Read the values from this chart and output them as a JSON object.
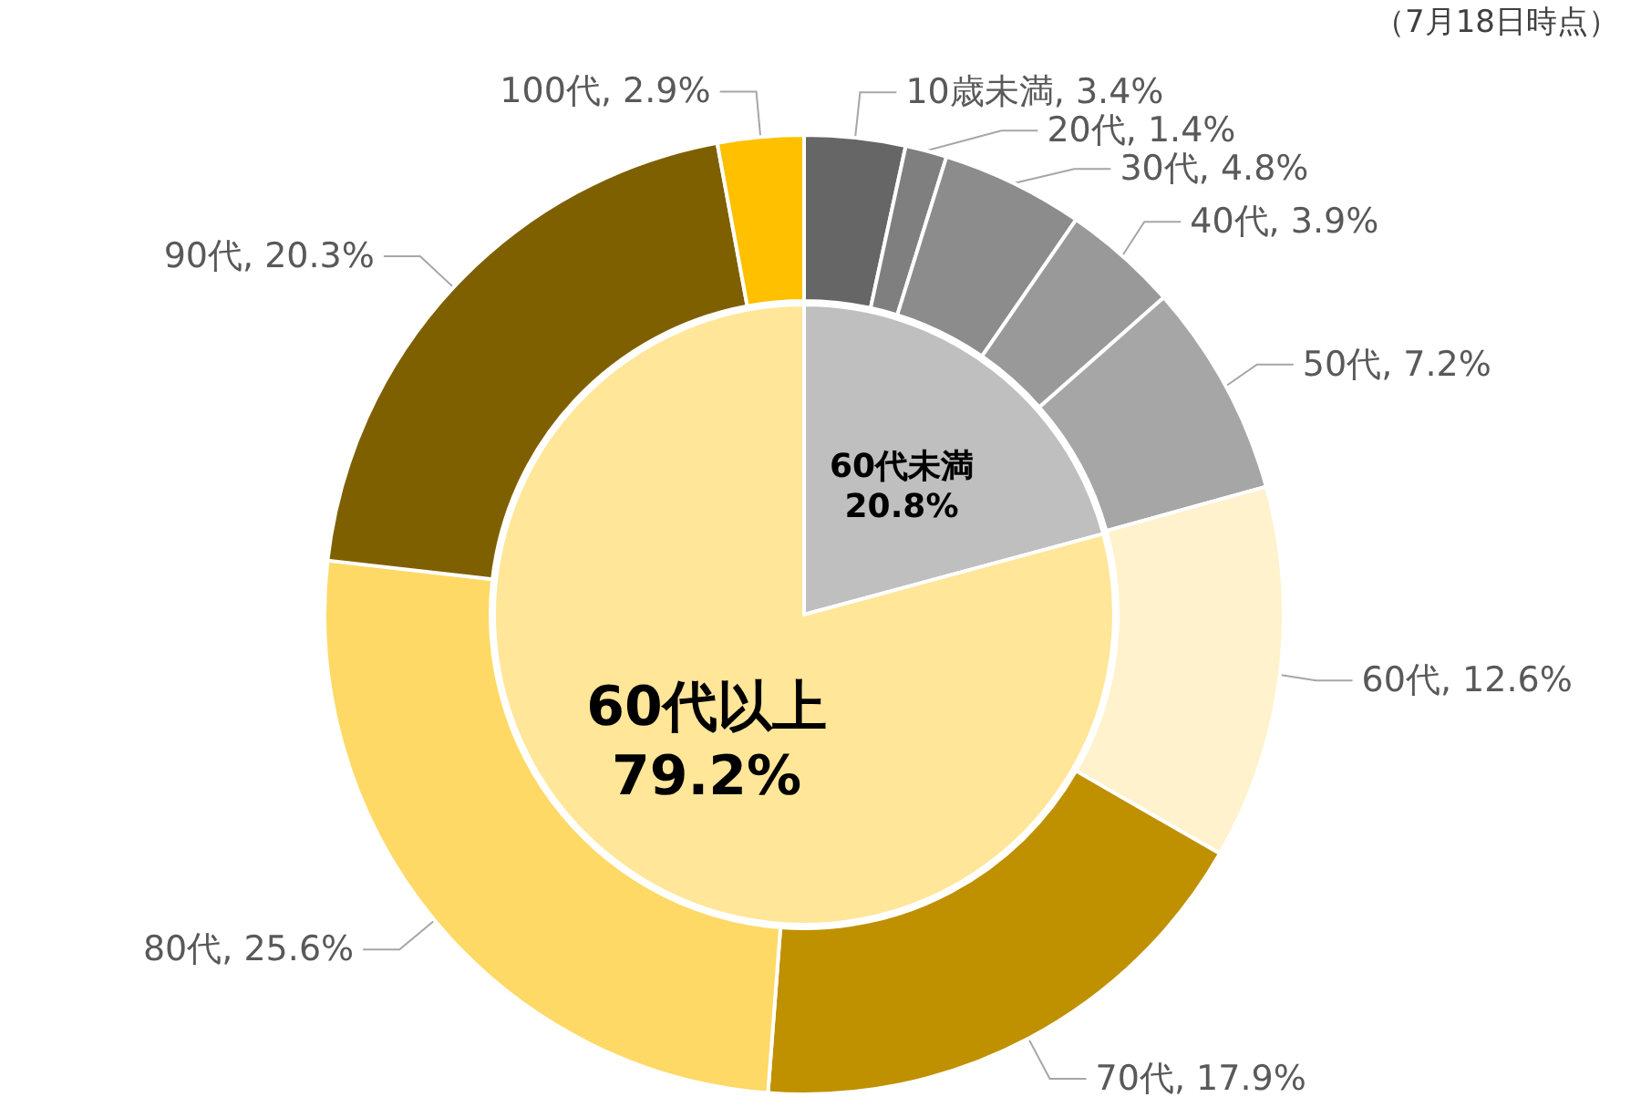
{
  "chart_data": [
    {
      "type": "donut",
      "categories": [
        "10歳未満",
        "20代",
        "30代",
        "40代",
        "50代",
        "60代",
        "70代",
        "80代",
        "90代",
        "100代"
      ],
      "values": [
        3.4,
        1.4,
        4.8,
        3.9,
        7.2,
        12.6,
        17.9,
        25.6,
        20.3,
        2.9
      ],
      "value_labels": [
        "3.4%",
        "1.4%",
        "4.8%",
        "3.9%",
        "7.2%",
        "12.6%",
        "17.9%",
        "25.6%",
        "20.3%",
        "2.9%"
      ],
      "colors": [
        "#666666",
        "#7f7f7f",
        "#8c8c8c",
        "#999999",
        "#a6a6a6",
        "#fff2cc",
        "#bf9000",
        "#ffd966",
        "#7f6000",
        "#ffc000"
      ],
      "annotations": [
        "（7月18日時点）"
      ]
    },
    {
      "type": "pie",
      "categories": [
        "60代未満",
        "60代以上"
      ],
      "values": [
        20.8,
        79.2
      ],
      "value_labels": [
        "20.8%",
        "79.2%"
      ],
      "colors": [
        "#bfbfbf",
        "#ffe699"
      ]
    }
  ]
}
